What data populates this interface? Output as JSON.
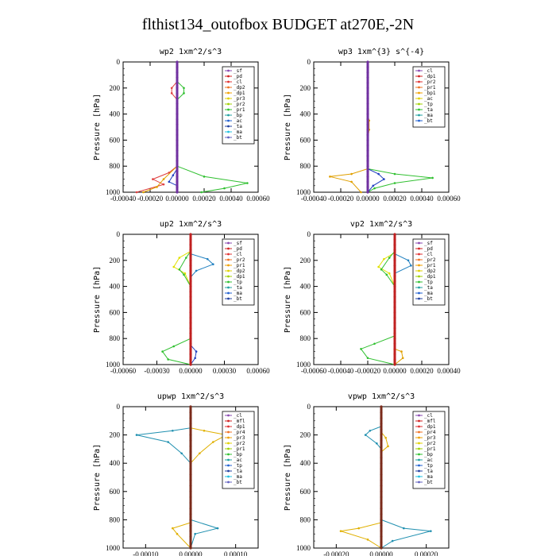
{
  "page": {
    "title": "flthist134_outofbox  BUDGET at270E,-2N"
  },
  "chart_data": [
    {
      "type": "line",
      "title": "wp2   1xm^2/s^3",
      "ylabel": "Pressure [hPa]",
      "xlim": [
        -0.0004,
        0.0006
      ],
      "ylim": [
        1000,
        0
      ],
      "xticks": [
        "-0.00040",
        "-0.00020",
        "0.00000",
        "0.00020",
        "0.00040",
        "0.00060"
      ],
      "yticks": [
        "0",
        "200",
        "400",
        "600",
        "800",
        "1000"
      ],
      "legend": [
        "_sf",
        "_pd",
        "_cl",
        "_dp2",
        "_dp1",
        "_pr3",
        "_pr2",
        "_pr1",
        "_bp",
        "_ac",
        "_ta",
        "_ma",
        "_bt"
      ],
      "series": [
        {
          "name": "_dp2",
          "color": "#e04040",
          "points": [
            [
              0,
              0
            ],
            [
              0,
              150
            ],
            [
              -4e-05,
              200
            ],
            [
              -4e-05,
              240
            ],
            [
              0,
              290
            ],
            [
              0,
              800
            ],
            [
              -6e-05,
              850
            ],
            [
              -0.00018,
              900
            ],
            [
              -0.0001,
              940
            ],
            [
              -0.0003,
              1000
            ]
          ]
        },
        {
          "name": "_dp1",
          "color": "#e0a000",
          "points": [
            [
              0,
              0
            ],
            [
              0,
              800
            ],
            [
              -0.0001,
              900
            ],
            [
              -0.00015,
              960
            ],
            [
              -0.00025,
              1000
            ]
          ]
        },
        {
          "name": "_bp",
          "color": "#30c030",
          "points": [
            [
              0,
              0
            ],
            [
              0,
              150
            ],
            [
              5e-05,
              200
            ],
            [
              5e-05,
              240
            ],
            [
              0,
              290
            ],
            [
              0,
              800
            ],
            [
              0.0002,
              880
            ],
            [
              0.00052,
              930
            ],
            [
              0.00035,
              970
            ],
            [
              0.00018,
              1000
            ]
          ]
        },
        {
          "name": "_ac",
          "color": "#2040c0",
          "points": [
            [
              0,
              0
            ],
            [
              0,
              820
            ],
            [
              -3e-05,
              870
            ],
            [
              -6e-05,
              920
            ],
            [
              0,
              950
            ],
            [
              0,
              1000
            ]
          ]
        },
        {
          "name": "_bt",
          "color": "#7030a0",
          "points": [
            [
              0,
              0
            ],
            [
              0,
              1000
            ]
          ]
        }
      ]
    },
    {
      "type": "line",
      "title": "wp3   1xm^{3} s^{-4}",
      "ylabel": "Pressure [hPa]",
      "xlim": [
        -0.0004,
        0.0006
      ],
      "ylim": [
        1000,
        0
      ],
      "xticks": [
        "-0.00040",
        "-0.00020",
        "0.00000",
        "0.00020",
        "0.00040",
        "0.00060"
      ],
      "yticks": [
        "0",
        "200",
        "400",
        "600",
        "800",
        "1000"
      ],
      "legend": [
        "_cl",
        "_dp1",
        "_pr2",
        "_pr1",
        "_bp1",
        "_ac",
        "_tp",
        "_ta",
        "_ma",
        "_bt"
      ],
      "series": [
        {
          "name": "_pr2",
          "color": "#e0a000",
          "points": [
            [
              0,
              0
            ],
            [
              0,
              400
            ],
            [
              1e-05,
              450
            ],
            [
              1e-05,
              520
            ],
            [
              0,
              600
            ],
            [
              0,
              820
            ],
            [
              -0.00012,
              860
            ],
            [
              -0.00028,
              880
            ],
            [
              -0.00012,
              920
            ],
            [
              -5e-05,
              1000
            ]
          ]
        },
        {
          "name": "_bp1",
          "color": "#30c030",
          "points": [
            [
              0,
              0
            ],
            [
              0,
              820
            ],
            [
              0.0002,
              860
            ],
            [
              0.00048,
              890
            ],
            [
              0.0002,
              930
            ],
            [
              5e-05,
              970
            ],
            [
              0,
              1000
            ]
          ]
        },
        {
          "name": "_ac",
          "color": "#2040c0",
          "points": [
            [
              0,
              0
            ],
            [
              0,
              820
            ],
            [
              8e-05,
              860
            ],
            [
              0.00012,
              900
            ],
            [
              4e-05,
              950
            ],
            [
              0,
              1000
            ]
          ]
        },
        {
          "name": "_dp1",
          "color": "#e04040",
          "points": [
            [
              0,
              0
            ],
            [
              0,
              1000
            ]
          ]
        }
      ]
    },
    {
      "type": "line",
      "title": "up2   1xm^2/s^3",
      "ylabel": "Pressure [hPa]",
      "xlim": [
        -0.0006,
        0.0006
      ],
      "ylim": [
        1000,
        0
      ],
      "xticks": [
        "-0.00060",
        "-0.00030",
        "0.00000",
        "0.00030",
        "0.00060"
      ],
      "yticks": [
        "0",
        "200",
        "400",
        "600",
        "800",
        "1000"
      ],
      "legend": [
        "_sf",
        "_pd",
        "_cl",
        "_pr2",
        "_pr1",
        "_dp2",
        "_dp1",
        "_tp",
        "_ta",
        "_ma",
        "_bt"
      ],
      "series": [
        {
          "name": "_pr2",
          "color": "#e0e000",
          "points": [
            [
              0,
              0
            ],
            [
              0,
              130
            ],
            [
              -0.0001,
              180
            ],
            [
              -0.00015,
              250
            ],
            [
              -5e-05,
              300
            ],
            [
              0,
              400
            ],
            [
              0,
              1000
            ]
          ]
        },
        {
          "name": "_dp2",
          "color": "#30c030",
          "points": [
            [
              0,
              0
            ],
            [
              0,
              130
            ],
            [
              -4e-05,
              180
            ],
            [
              -0.0001,
              270
            ],
            [
              -6e-05,
              310
            ],
            [
              0,
              400
            ],
            [
              0,
              800
            ],
            [
              -0.00015,
              860
            ],
            [
              -0.00025,
              900
            ],
            [
              -0.0002,
              960
            ],
            [
              0,
              1000
            ]
          ]
        },
        {
          "name": "_tp",
          "color": "#2080c0",
          "points": [
            [
              0,
              0
            ],
            [
              0,
              150
            ],
            [
              0.00015,
              190
            ],
            [
              0.0002,
              230
            ],
            [
              5e-05,
              280
            ],
            [
              0,
              330
            ],
            [
              0,
              1000
            ]
          ]
        },
        {
          "name": "_ac",
          "color": "#2040c0",
          "points": [
            [
              0,
              0
            ],
            [
              0,
              850
            ],
            [
              5e-05,
              900
            ],
            [
              4e-05,
              950
            ],
            [
              0,
              1000
            ]
          ]
        },
        {
          "name": "_bt",
          "color": "#cc2020",
          "points": [
            [
              0,
              0
            ],
            [
              0,
              1000
            ]
          ]
        }
      ]
    },
    {
      "type": "line",
      "title": "vp2   1xm^2/s^3",
      "ylabel": "Pressure [hPa]",
      "xlim": [
        -0.0006,
        0.0004
      ],
      "ylim": [
        1000,
        0
      ],
      "xticks": [
        "-0.00060",
        "-0.00040",
        "-0.00020",
        "0.00000",
        "0.00020",
        "0.00040"
      ],
      "yticks": [
        "0",
        "200",
        "400",
        "600",
        "800",
        "1000"
      ],
      "legend": [
        "_sf",
        "_pd",
        "_cl",
        "_pr2",
        "_pr1",
        "_dp2",
        "_dp1",
        "_tp",
        "_ta",
        "_ma",
        "_bt"
      ],
      "series": [
        {
          "name": "_pr2",
          "color": "#e0e000",
          "points": [
            [
              0,
              0
            ],
            [
              0,
              140
            ],
            [
              -8e-05,
              190
            ],
            [
              -0.00012,
              250
            ],
            [
              -4e-05,
              300
            ],
            [
              0,
              400
            ],
            [
              0,
              1000
            ]
          ]
        },
        {
          "name": "_dp2",
          "color": "#30c030",
          "points": [
            [
              0,
              0
            ],
            [
              0,
              130
            ],
            [
              -4e-05,
              180
            ],
            [
              -0.0001,
              270
            ],
            [
              -6e-05,
              310
            ],
            [
              0,
              400
            ],
            [
              0,
              780
            ],
            [
              -0.00015,
              840
            ],
            [
              -0.00025,
              880
            ],
            [
              -0.0002,
              950
            ],
            [
              0,
              1000
            ]
          ]
        },
        {
          "name": "_pr3",
          "color": "#e0a000",
          "points": [
            [
              0,
              0
            ],
            [
              0,
              880
            ],
            [
              5e-05,
              900
            ],
            [
              6e-05,
              950
            ],
            [
              0,
              1000
            ]
          ]
        },
        {
          "name": "_tp",
          "color": "#2080c0",
          "points": [
            [
              0,
              0
            ],
            [
              0,
              150
            ],
            [
              0.0001,
              200
            ],
            [
              0.00012,
              240
            ],
            [
              0,
              300
            ],
            [
              0,
              1000
            ]
          ]
        },
        {
          "name": "_bt",
          "color": "#cc2020",
          "points": [
            [
              0,
              0
            ],
            [
              0,
              1000
            ]
          ]
        }
      ]
    },
    {
      "type": "line",
      "title": "upwp   1xm^2/s^3",
      "ylabel": "Pressure [hPa]",
      "xlim": [
        -0.00015,
        0.00015
      ],
      "ylim": [
        1000,
        0
      ],
      "xticks": [
        "-0.00010",
        "0.00000",
        "0.00010"
      ],
      "yticks": [
        "0",
        "200",
        "400",
        "600",
        "800",
        "1000"
      ],
      "legend": [
        "_cl",
        "_mfl",
        "_dp1",
        "_pr4",
        "_pr3",
        "_pr2",
        "_pr1",
        "_bp",
        "_ac",
        "_tp",
        "_ta",
        "_ma",
        "_bt"
      ],
      "series": [
        {
          "name": "_tp",
          "color": "#2090b0",
          "points": [
            [
              0,
              0
            ],
            [
              0,
              150
            ],
            [
              -4e-05,
              170
            ],
            [
              -0.00012,
              200
            ],
            [
              -5e-05,
              250
            ],
            [
              -2e-05,
              330
            ],
            [
              0,
              400
            ],
            [
              0,
              800
            ],
            [
              6e-05,
              860
            ],
            [
              1e-05,
              900
            ],
            [
              0,
              1000
            ]
          ]
        },
        {
          "name": "_pr2",
          "color": "#e0b000",
          "points": [
            [
              0,
              0
            ],
            [
              0,
              150
            ],
            [
              3e-05,
              170
            ],
            [
              8e-05,
              200
            ],
            [
              5e-05,
              250
            ],
            [
              2e-05,
              330
            ],
            [
              0,
              400
            ],
            [
              0,
              820
            ],
            [
              -4e-05,
              860
            ],
            [
              -3e-05,
              900
            ],
            [
              0,
              1000
            ]
          ]
        },
        {
          "name": "_bt",
          "color": "#8a3a1a",
          "points": [
            [
              0,
              0
            ],
            [
              0,
              1000
            ]
          ]
        }
      ]
    },
    {
      "type": "line",
      "title": "vpwp   1xm^2/s^3",
      "ylabel": "Pressure [hPa]",
      "xlim": [
        -0.0003,
        0.0003
      ],
      "ylim": [
        1000,
        0
      ],
      "xticks": [
        "-0.00020",
        "0.00000",
        "0.00020"
      ],
      "yticks": [
        "0",
        "200",
        "400",
        "600",
        "800",
        "1000"
      ],
      "legend": [
        "_cl",
        "_mfl",
        "_dp1",
        "_pr4",
        "_pr3",
        "_pr2",
        "_pr1",
        "_bp",
        "_ac",
        "_tp",
        "_ta",
        "_ma",
        "_bt"
      ],
      "series": [
        {
          "name": "_tp",
          "color": "#2090b0",
          "points": [
            [
              0,
              0
            ],
            [
              0,
              140
            ],
            [
              -5e-05,
              170
            ],
            [
              -7e-05,
              200
            ],
            [
              -2e-05,
              260
            ],
            [
              0,
              300
            ],
            [
              0,
              800
            ],
            [
              0.0001,
              860
            ],
            [
              0.00022,
              880
            ],
            [
              5e-05,
              950
            ],
            [
              0,
              1000
            ]
          ]
        },
        {
          "name": "_pr2",
          "color": "#e0b000",
          "points": [
            [
              0,
              0
            ],
            [
              0,
              180
            ],
            [
              2e-05,
              220
            ],
            [
              3e-05,
              280
            ],
            [
              0,
              320
            ],
            [
              0,
              820
            ],
            [
              -0.0001,
              860
            ],
            [
              -0.00018,
              880
            ],
            [
              -6e-05,
              940
            ],
            [
              0,
              1000
            ]
          ]
        },
        {
          "name": "_bt",
          "color": "#8a3a1a",
          "points": [
            [
              0,
              0
            ],
            [
              0,
              1000
            ]
          ]
        }
      ]
    }
  ]
}
